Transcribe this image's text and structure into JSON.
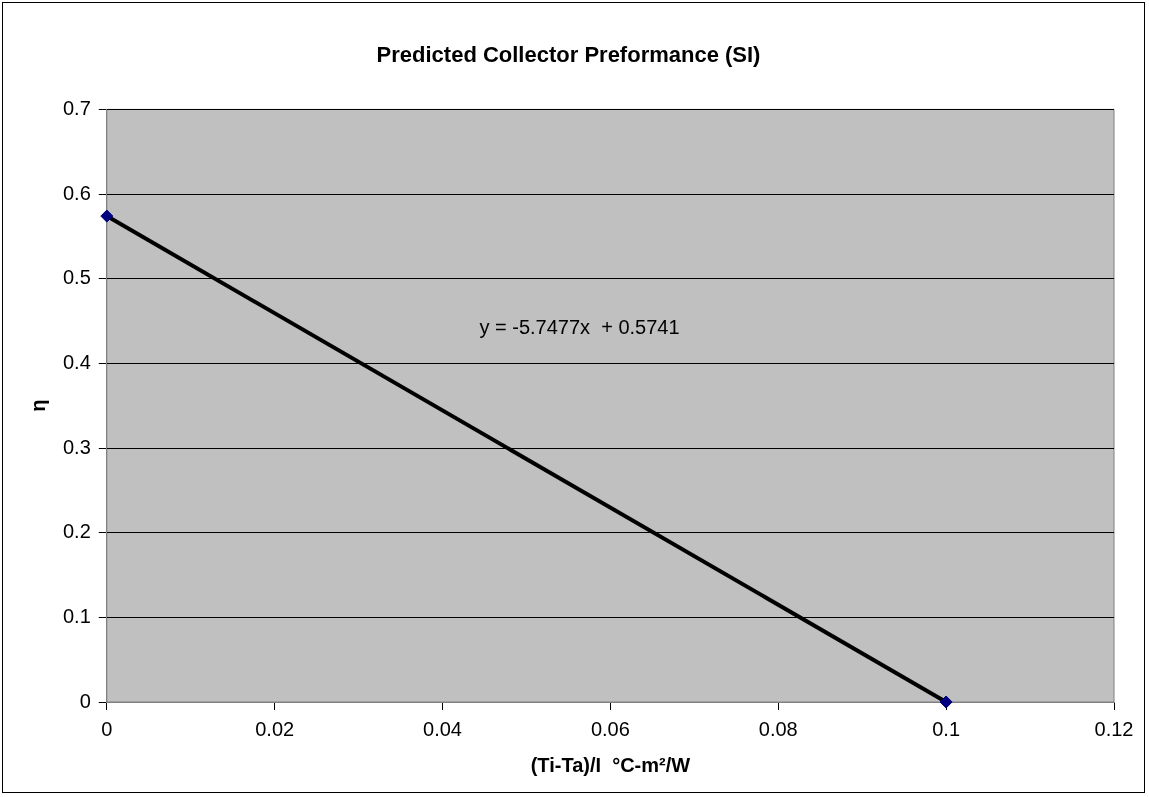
{
  "chart_data": {
    "type": "scatter",
    "title": "Predicted Collector Preformance (SI)",
    "xlabel": "(Ti-Ta)/I  °C-m²/W",
    "ylabel": "η",
    "series": [
      {
        "type": "scatter",
        "values": [
          0.574,
          0
        ],
        "color": "#000080",
        "marker": "diamond"
      },
      {
        "type": "line",
        "values": [
          0.574,
          0
        ],
        "color": "#000000",
        "marker": "none"
      }
    ],
    "x": [
      0,
      0.1
    ],
    "annotations": [
      "y = -5.7477x  + 0.5741"
    ],
    "xlim": [
      0,
      0.12
    ],
    "xticks": [
      0,
      0.02,
      0.04,
      0.06,
      0.08,
      0.1,
      0.12
    ],
    "ylim": [
      0,
      0.7
    ],
    "yticks": [
      0,
      0.1,
      0.2,
      0.3,
      0.4,
      0.5,
      0.6,
      0.7
    ],
    "grid": "y",
    "legend": false
  }
}
